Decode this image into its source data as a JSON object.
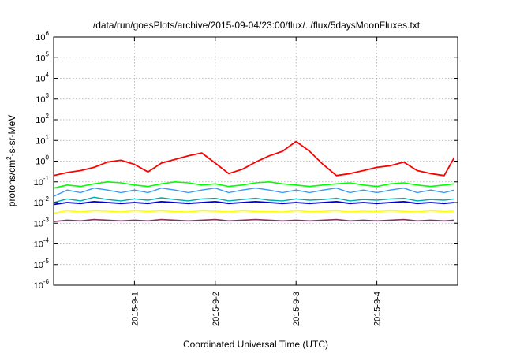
{
  "chart_data": {
    "type": "line",
    "title": "/data/run/goesPlots/archive/2015-09-04/23:00/flux/../flux/5daysMoonFluxes.txt",
    "xlabel": "Coordinated Universal Time (UTC)",
    "ylabel_parts": {
      "base": "protons/cm",
      "sup": "2",
      "rest": "-s-sr-MeV"
    },
    "yscale": "log",
    "ylim": [
      1e-06,
      1000000.0
    ],
    "y_ticks": [
      {
        "value": 1e-06,
        "base": "10",
        "exp": "-6"
      },
      {
        "value": 1e-05,
        "base": "10",
        "exp": "-5"
      },
      {
        "value": 0.0001,
        "base": "10",
        "exp": "-4"
      },
      {
        "value": 0.001,
        "base": "10",
        "exp": "-3"
      },
      {
        "value": 0.01,
        "base": "10",
        "exp": "-2"
      },
      {
        "value": 0.1,
        "base": "10",
        "exp": "-1"
      },
      {
        "value": 1,
        "base": "10",
        "exp": "0"
      },
      {
        "value": 10,
        "base": "10",
        "exp": "1"
      },
      {
        "value": 100,
        "base": "10",
        "exp": "2"
      },
      {
        "value": 1000,
        "base": "10",
        "exp": "3"
      },
      {
        "value": 10000,
        "base": "10",
        "exp": "4"
      },
      {
        "value": 100000,
        "base": "10",
        "exp": "5"
      },
      {
        "value": 1000000,
        "base": "10",
        "exp": "6"
      }
    ],
    "xlim": [
      "2015-08-31 00:00",
      "2015-09-05 00:00"
    ],
    "x_ticks": [
      {
        "value": "2015-09-01 00:00",
        "label": "2015-9-1"
      },
      {
        "value": "2015-09-02 00:00",
        "label": "2015-9-2"
      },
      {
        "value": "2015-09-03 00:00",
        "label": "2015-9-3"
      },
      {
        "value": "2015-09-04 00:00",
        "label": "2015-9-4"
      }
    ],
    "grid": true,
    "x": [
      "2015-08-31 00:00",
      "2015-08-31 04:00",
      "2015-08-31 08:00",
      "2015-08-31 12:00",
      "2015-08-31 16:00",
      "2015-08-31 20:00",
      "2015-09-01 00:00",
      "2015-09-01 04:00",
      "2015-09-01 08:00",
      "2015-09-01 12:00",
      "2015-09-01 16:00",
      "2015-09-01 20:00",
      "2015-09-02 00:00",
      "2015-09-02 04:00",
      "2015-09-02 08:00",
      "2015-09-02 12:00",
      "2015-09-02 16:00",
      "2015-09-02 20:00",
      "2015-09-03 00:00",
      "2015-09-03 04:00",
      "2015-09-03 08:00",
      "2015-09-03 12:00",
      "2015-09-03 16:00",
      "2015-09-03 20:00",
      "2015-09-04 00:00",
      "2015-09-04 04:00",
      "2015-09-04 08:00",
      "2015-09-04 12:00",
      "2015-09-04 16:00",
      "2015-09-04 20:00",
      "2015-09-04 23:00"
    ],
    "series": [
      {
        "color": "#ff0000",
        "width": 1.8,
        "values": [
          0.2,
          0.28,
          0.35,
          0.5,
          0.9,
          1.1,
          0.7,
          0.3,
          0.8,
          1.2,
          1.8,
          2.5,
          0.8,
          0.25,
          0.4,
          0.9,
          1.8,
          3,
          9,
          3,
          0.7,
          0.2,
          0.25,
          0.35,
          0.5,
          0.6,
          0.9,
          0.35,
          0.25,
          0.2,
          1.5
        ]
      },
      {
        "color": "#00ff00",
        "width": 1.6,
        "values": [
          0.05,
          0.07,
          0.06,
          0.08,
          0.1,
          0.09,
          0.07,
          0.06,
          0.08,
          0.1,
          0.09,
          0.07,
          0.08,
          0.06,
          0.07,
          0.09,
          0.1,
          0.08,
          0.07,
          0.06,
          0.07,
          0.08,
          0.09,
          0.07,
          0.06,
          0.08,
          0.09,
          0.07,
          0.06,
          0.07,
          0.08
        ]
      },
      {
        "color": "#3399ff",
        "width": 1.4,
        "values": [
          0.02,
          0.04,
          0.03,
          0.05,
          0.04,
          0.03,
          0.04,
          0.03,
          0.05,
          0.04,
          0.03,
          0.04,
          0.05,
          0.03,
          0.04,
          0.05,
          0.04,
          0.03,
          0.04,
          0.03,
          0.04,
          0.05,
          0.03,
          0.04,
          0.03,
          0.04,
          0.05,
          0.03,
          0.04,
          0.03,
          0.04
        ]
      },
      {
        "color": "#00aaaa",
        "width": 1.4,
        "values": [
          0.01,
          0.015,
          0.012,
          0.018,
          0.014,
          0.012,
          0.015,
          0.013,
          0.017,
          0.014,
          0.012,
          0.015,
          0.016,
          0.012,
          0.014,
          0.016,
          0.013,
          0.012,
          0.015,
          0.013,
          0.014,
          0.016,
          0.012,
          0.014,
          0.013,
          0.015,
          0.016,
          0.012,
          0.014,
          0.013,
          0.015
        ]
      },
      {
        "color": "#0000cc",
        "width": 1.8,
        "values": [
          0.008,
          0.01,
          0.009,
          0.011,
          0.01,
          0.009,
          0.01,
          0.009,
          0.011,
          0.01,
          0.009,
          0.01,
          0.011,
          0.009,
          0.01,
          0.011,
          0.01,
          0.009,
          0.01,
          0.009,
          0.01,
          0.011,
          0.009,
          0.01,
          0.009,
          0.01,
          0.011,
          0.009,
          0.01,
          0.009,
          0.01
        ]
      },
      {
        "color": "#ffff00",
        "width": 1.6,
        "values": [
          0.003,
          0.004,
          0.0035,
          0.004,
          0.0038,
          0.0035,
          0.004,
          0.0037,
          0.004,
          0.0036,
          0.0035,
          0.004,
          0.0038,
          0.0035,
          0.004,
          0.0037,
          0.0036,
          0.0035,
          0.004,
          0.0036,
          0.0037,
          0.004,
          0.0035,
          0.0038,
          0.0036,
          0.004,
          0.0037,
          0.0035,
          0.004,
          0.0036,
          0.0038
        ]
      },
      {
        "color": "#883366",
        "width": 1.6,
        "values": [
          0.0012,
          0.0014,
          0.0013,
          0.0015,
          0.0014,
          0.0013,
          0.0014,
          0.0013,
          0.0015,
          0.0014,
          0.0013,
          0.0014,
          0.0015,
          0.0013,
          0.0014,
          0.0015,
          0.0014,
          0.0013,
          0.0014,
          0.0013,
          0.0014,
          0.0015,
          0.0013,
          0.0014,
          0.0013,
          0.0014,
          0.0015,
          0.0013,
          0.0014,
          0.0013,
          0.0014
        ]
      }
    ]
  }
}
